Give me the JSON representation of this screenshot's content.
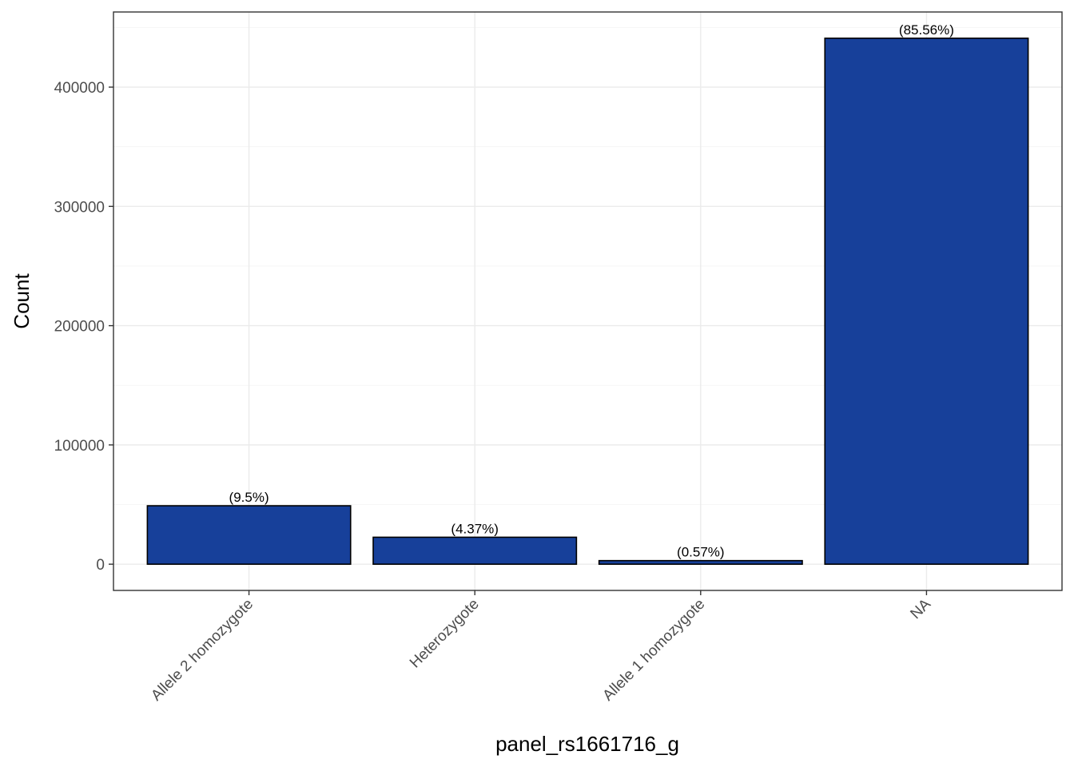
{
  "chart_data": {
    "type": "bar",
    "title": "",
    "xlabel": "panel_rs1661716_g",
    "ylabel": "Count",
    "categories": [
      "Allele 2 homozygote",
      "Heterozygote",
      "Allele 1 homozygote",
      "NA"
    ],
    "values": [
      49000,
      22600,
      3000,
      441000
    ],
    "labels": [
      "(9.5%)",
      "(4.37%)",
      "(0.57%)",
      "(85.56%)"
    ],
    "y_ticks": [
      0,
      100000,
      200000,
      300000,
      400000
    ],
    "y_tick_labels": [
      "0",
      "100000",
      "200000",
      "300000",
      "400000"
    ],
    "ylim": [
      -22000,
      463000
    ],
    "grid": true,
    "legend": "none",
    "bar_fill": "#17409a",
    "bar_stroke": "#000000"
  }
}
